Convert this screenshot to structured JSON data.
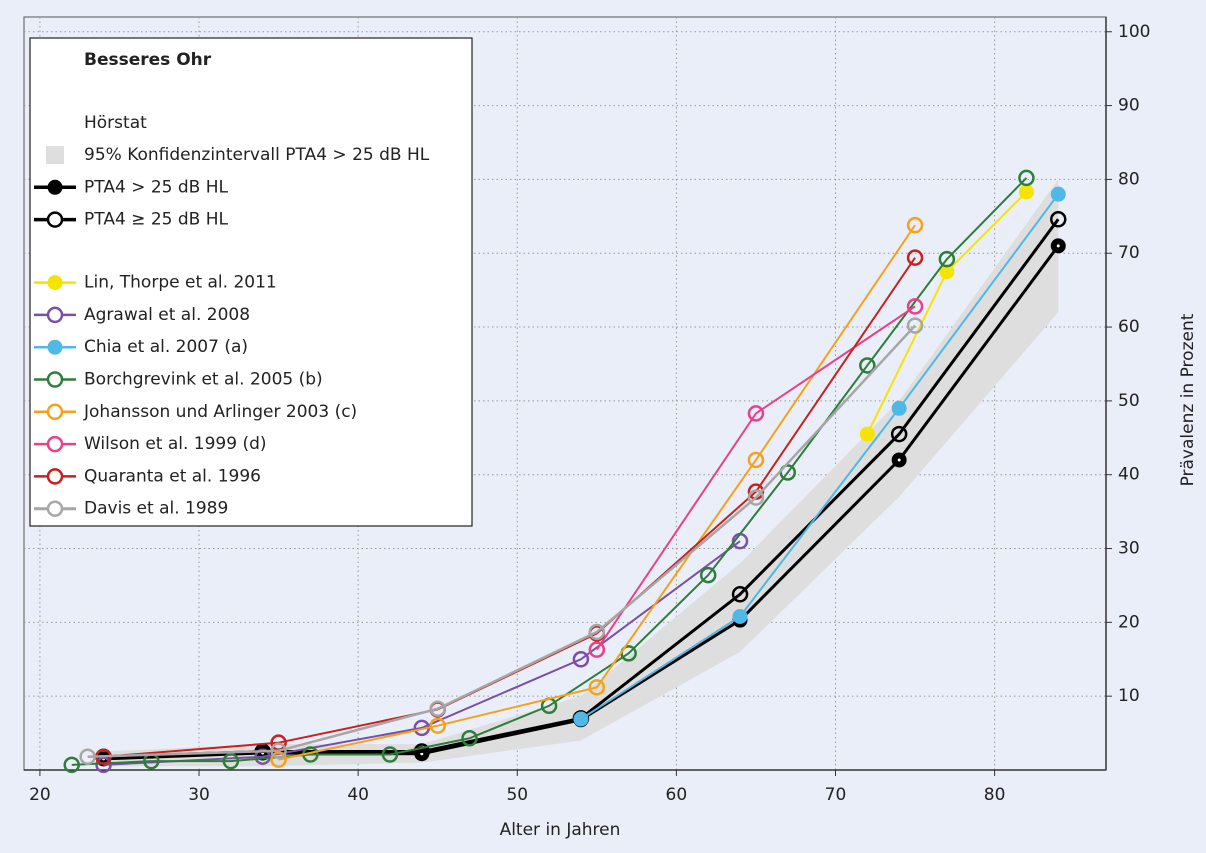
{
  "chart_data": {
    "type": "line",
    "xlabel": "Alter in Jahren",
    "ylabel": "Prävalenz in Prozent",
    "xlim": [
      19,
      87
    ],
    "ylim": [
      0,
      102
    ],
    "xticks": [
      20,
      30,
      40,
      50,
      60,
      70,
      80
    ],
    "yticks": [
      10,
      20,
      30,
      40,
      50,
      60,
      70,
      80,
      90,
      100
    ],
    "grid": true,
    "legend_position": "upper left",
    "legend_title": "Besseres Ohr",
    "legend_group": "Hörstat",
    "band": {
      "name": "95% Konfidenzintervall PTA4 > 25 dB HL",
      "color": "#dedede",
      "x": [
        24,
        34,
        44,
        54,
        64,
        74,
        84
      ],
      "lower": [
        0.5,
        0.5,
        1,
        4,
        16,
        37,
        62
      ],
      "upper": [
        2.5,
        3.5,
        3.5,
        10,
        28,
        50,
        80
      ]
    },
    "series": [
      {
        "name": "PTA4 > 25 dB HL",
        "color": "#000000",
        "marker": "filled",
        "width": 3,
        "x": [
          24,
          34,
          44,
          54,
          64,
          74,
          84
        ],
        "values": [
          1.5,
          2.3,
          2.2,
          6.8,
          20.3,
          42,
          71
        ]
      },
      {
        "name": "PTA4 ≥ 25 dB HL",
        "color": "#000000",
        "marker": "open",
        "width": 3,
        "x": [
          24,
          34,
          44,
          54,
          64,
          74,
          84
        ],
        "values": [
          1.8,
          2.5,
          2.5,
          7,
          23.8,
          45.5,
          74.6
        ]
      },
      {
        "name": "Lin, Thorpe et al. 2011",
        "color": "#f5e400",
        "marker": "filled",
        "width": 2,
        "x": [
          72,
          77,
          82
        ],
        "values": [
          45.5,
          67.5,
          78.3
        ]
      },
      {
        "name": "Agrawal et al. 2008",
        "color": "#7b4fa6",
        "marker": "open",
        "width": 2,
        "x": [
          24,
          34,
          44,
          54,
          64
        ],
        "values": [
          0.7,
          1.8,
          5.7,
          15,
          31
        ]
      },
      {
        "name": "Chia et al. 2007 (a)",
        "color": "#4fb8e6",
        "marker": "filled",
        "width": 2,
        "x": [
          54,
          64,
          74,
          84
        ],
        "values": [
          6.9,
          20.8,
          49,
          78
        ]
      },
      {
        "name": "Borchgrevink et al. 2005 (b)",
        "color": "#2e7d3a",
        "marker": "open",
        "width": 2,
        "x": [
          22,
          27,
          32,
          37,
          42,
          47,
          52,
          57,
          62,
          67,
          72,
          77,
          82
        ],
        "values": [
          0.7,
          1.2,
          1.2,
          2.1,
          2.1,
          4.3,
          8.7,
          15.8,
          26.4,
          40.3,
          54.8,
          69.2,
          80.2
        ]
      },
      {
        "name": "Johansson und Arlinger 2003 (c)",
        "color": "#f5a21a",
        "marker": "open",
        "width": 2,
        "x": [
          35,
          45,
          55,
          65,
          75
        ],
        "values": [
          1.4,
          6,
          11.2,
          42,
          73.8
        ]
      },
      {
        "name": "Wilson et al. 1999 (d)",
        "color": "#e8408a",
        "marker": "open",
        "width": 2,
        "x": [
          55,
          65,
          75
        ],
        "values": [
          16.3,
          48.3,
          62.8
        ]
      },
      {
        "name": "Quaranta et al. 1996",
        "color": "#c8201e",
        "marker": "open",
        "width": 2,
        "x": [
          24,
          35,
          45,
          55,
          65,
          75
        ],
        "values": [
          1.8,
          3.7,
          8.2,
          18.5,
          37.7,
          69.4
        ]
      },
      {
        "name": "Davis et al. 1989",
        "color": "#a6a6a6",
        "marker": "open",
        "width": 2.5,
        "x": [
          23,
          35,
          45,
          55,
          65,
          75
        ],
        "values": [
          1.8,
          2.6,
          8.3,
          18.7,
          36.9,
          60.2
        ]
      }
    ]
  }
}
